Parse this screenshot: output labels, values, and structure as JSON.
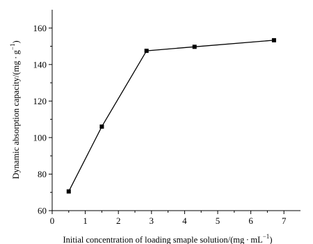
{
  "chart_data": {
    "type": "line",
    "title": "",
    "xlabel": "Initial concentration of loading smaple solution/(mg · mL",
    "xlabel_sup": "−1",
    "xlabel_close": ")",
    "ylabel": "Dynamic absorption capacity/(mg · g",
    "ylabel_sup": "−1",
    "ylabel_close": ")",
    "xlim": [
      0,
      7.5
    ],
    "ylim": [
      60,
      170
    ],
    "xticks": [
      0,
      1,
      2,
      3,
      4,
      5,
      6,
      7
    ],
    "yticks": [
      60,
      80,
      100,
      120,
      140,
      160
    ],
    "grid": false,
    "marker": "square",
    "color": "#000000",
    "series": [
      {
        "x": [
          0.5,
          1.5,
          2.85,
          4.3,
          6.7
        ],
        "y": [
          70.5,
          106,
          147.5,
          149.7,
          153.3
        ]
      }
    ]
  }
}
